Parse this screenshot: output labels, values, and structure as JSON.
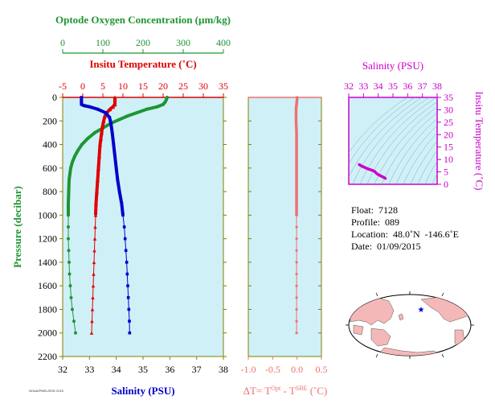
{
  "colors": {
    "oxygen": "#1e9632",
    "temperature": "#e00000",
    "salinity": "#0000cc",
    "delta_t": "#f07070",
    "ts_axis": "#cc00cc",
    "plot_bg": "#d0f0f8",
    "axis_olive": "#808000"
  },
  "labels": {
    "oxygen_axis": "Optode Oxygen Concentration (µm/kg)",
    "temp_axis": "Insitu Temperature (˚C)",
    "pressure_axis": "Pressure (decibar)",
    "salinity_axis": "Salinity (PSU)",
    "dt_axis": "ΔT= T",
    "dt_sup1": "Opt",
    "dt_mid": " - T",
    "dt_sup2": "SBE",
    "dt_unit": " (˚C)",
    "ts_salinity_axis": "Salinity (PSU)",
    "ts_temp_axis": "Insitu Temperature (˚C)",
    "stamp": "NOAA/PMEL/EDD 2015"
  },
  "info": {
    "float": "Float:  7128",
    "profile": "Profile:  089",
    "location": "Location:  48.0˚N  -146.6˚E",
    "date": "Date:  01/09/2015"
  },
  "chart_data": [
    {
      "type": "line",
      "title": "",
      "ylabel": "Pressure (decibar)",
      "ylim": [
        2200,
        0
      ],
      "yticks": [
        0,
        200,
        400,
        600,
        800,
        1000,
        1200,
        1400,
        1600,
        1800,
        2000,
        2200
      ],
      "axes": {
        "oxygen": {
          "label": "Optode Oxygen Concentration (µm/kg)",
          "range": [
            0,
            400
          ],
          "ticks": [
            0,
            100,
            200,
            300,
            400
          ]
        },
        "temperature": {
          "label": "Insitu Temperature (˚C)",
          "range": [
            -5,
            35
          ],
          "ticks": [
            -5,
            0,
            5,
            10,
            15,
            20,
            25,
            30,
            35
          ]
        },
        "salinity": {
          "label": "Salinity (PSU)",
          "range": [
            32,
            38
          ],
          "ticks": [
            32,
            33,
            34,
            35,
            36,
            37,
            38
          ]
        }
      },
      "series": [
        {
          "name": "oxygen",
          "axis": "oxygen",
          "points": [
            [
              260,
              0
            ],
            [
              258,
              20
            ],
            [
              255,
              40
            ],
            [
              250,
              60
            ],
            [
              235,
              80
            ],
            [
              210,
              100
            ],
            [
              185,
              130
            ],
            [
              160,
              160
            ],
            [
              140,
              190
            ],
            [
              120,
              220
            ],
            [
              100,
              260
            ],
            [
              80,
              300
            ],
            [
              62,
              350
            ],
            [
              48,
              400
            ],
            [
              38,
              450
            ],
            [
              30,
              500
            ],
            [
              24,
              550
            ],
            [
              20,
              600
            ],
            [
              18,
              650
            ],
            [
              16,
              700
            ],
            [
              15,
              800
            ],
            [
              14,
              900
            ],
            [
              14,
              1000
            ],
            [
              14,
              1100
            ],
            [
              14,
              1200
            ],
            [
              15,
              1300
            ],
            [
              16,
              1400
            ],
            [
              17,
              1500
            ],
            [
              19,
              1600
            ],
            [
              21,
              1700
            ],
            [
              24,
              1800
            ],
            [
              28,
              1900
            ],
            [
              32,
              2000
            ]
          ]
        },
        {
          "name": "temperature",
          "axis": "temperature",
          "points": [
            [
              8.0,
              0
            ],
            [
              8.0,
              20
            ],
            [
              8.0,
              40
            ],
            [
              8.0,
              60
            ],
            [
              7.5,
              80
            ],
            [
              6.8,
              100
            ],
            [
              6.0,
              130
            ],
            [
              5.5,
              160
            ],
            [
              5.2,
              200
            ],
            [
              4.9,
              250
            ],
            [
              4.7,
              300
            ],
            [
              4.5,
              350
            ],
            [
              4.3,
              400
            ],
            [
              4.1,
              500
            ],
            [
              3.9,
              600
            ],
            [
              3.7,
              700
            ],
            [
              3.5,
              800
            ],
            [
              3.3,
              900
            ],
            [
              3.2,
              1000
            ],
            [
              3.1,
              1100
            ],
            [
              3.0,
              1200
            ],
            [
              2.9,
              1300
            ],
            [
              2.8,
              1400
            ],
            [
              2.7,
              1500
            ],
            [
              2.6,
              1600
            ],
            [
              2.5,
              1700
            ],
            [
              2.4,
              1800
            ],
            [
              2.3,
              1900
            ],
            [
              2.2,
              2000
            ]
          ]
        },
        {
          "name": "salinity",
          "axis": "salinity",
          "points": [
            [
              32.7,
              0
            ],
            [
              32.7,
              20
            ],
            [
              32.7,
              40
            ],
            [
              32.7,
              60
            ],
            [
              32.8,
              70
            ],
            [
              33.0,
              80
            ],
            [
              33.3,
              100
            ],
            [
              33.6,
              130
            ],
            [
              33.75,
              170
            ],
            [
              33.8,
              220
            ],
            [
              33.85,
              300
            ],
            [
              33.9,
              400
            ],
            [
              33.95,
              500
            ],
            [
              34.0,
              600
            ],
            [
              34.05,
              700
            ],
            [
              34.12,
              800
            ],
            [
              34.2,
              900
            ],
            [
              34.25,
              1000
            ],
            [
              34.3,
              1100
            ],
            [
              34.33,
              1200
            ],
            [
              34.36,
              1300
            ],
            [
              34.39,
              1400
            ],
            [
              34.41,
              1500
            ],
            [
              34.43,
              1600
            ],
            [
              34.45,
              1700
            ],
            [
              34.47,
              1800
            ],
            [
              34.49,
              1900
            ],
            [
              34.5,
              2000
            ]
          ]
        }
      ]
    },
    {
      "type": "line",
      "title": "",
      "xlabel": "ΔT= T^Opt - T^SBE (˚C)",
      "xlim": [
        -1.0,
        0.5
      ],
      "xticks": [
        -1.0,
        -0.5,
        0.0,
        0.5
      ],
      "ylim": [
        2200,
        0
      ],
      "series": [
        {
          "name": "delta_t",
          "points": [
            [
              0.0,
              0
            ],
            [
              0.0,
              20
            ],
            [
              -0.01,
              60
            ],
            [
              -0.02,
              100
            ],
            [
              -0.02,
              150
            ],
            [
              -0.02,
              200
            ],
            [
              -0.01,
              300
            ],
            [
              -0.01,
              400
            ],
            [
              -0.01,
              500
            ],
            [
              -0.01,
              600
            ],
            [
              -0.01,
              700
            ],
            [
              -0.01,
              800
            ],
            [
              -0.01,
              900
            ],
            [
              -0.01,
              1000
            ],
            [
              -0.01,
              1100
            ],
            [
              -0.01,
              1200
            ],
            [
              -0.01,
              1300
            ],
            [
              -0.01,
              1400
            ],
            [
              -0.01,
              1500
            ],
            [
              -0.01,
              1600
            ],
            [
              -0.01,
              1700
            ],
            [
              -0.01,
              1800
            ],
            [
              -0.01,
              1900
            ],
            [
              -0.01,
              2000
            ]
          ]
        }
      ]
    },
    {
      "type": "scatter",
      "title": "",
      "xlabel": "Salinity (PSU)",
      "ylabel": "Insitu Temperature (˚C)",
      "xlim": [
        32,
        38
      ],
      "xticks": [
        32,
        33,
        34,
        35,
        36,
        37,
        38
      ],
      "ylim": [
        0,
        35
      ],
      "yticks": [
        0,
        5,
        10,
        15,
        20,
        25,
        30,
        35
      ],
      "series": [
        {
          "name": "ts",
          "points": [
            [
              32.7,
              8.0
            ],
            [
              32.8,
              7.6
            ],
            [
              33.0,
              7.0
            ],
            [
              33.3,
              6.2
            ],
            [
              33.6,
              5.6
            ],
            [
              33.75,
              5.2
            ],
            [
              33.8,
              4.9
            ],
            [
              33.85,
              4.6
            ],
            [
              33.9,
              4.3
            ],
            [
              33.95,
              4.1
            ],
            [
              34.0,
              3.9
            ],
            [
              34.1,
              3.6
            ],
            [
              34.2,
              3.3
            ],
            [
              34.3,
              3.0
            ],
            [
              34.4,
              2.7
            ],
            [
              34.5,
              2.3
            ]
          ]
        }
      ]
    }
  ]
}
